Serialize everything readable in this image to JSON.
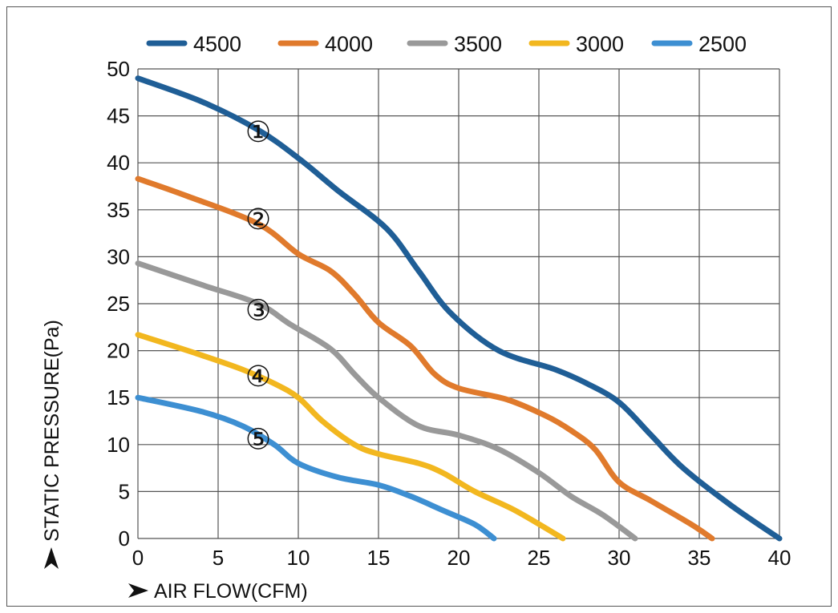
{
  "chart_data": {
    "type": "line",
    "xlabel": "AIR FLOW(CFM)",
    "ylabel": "STATIC PRESSURE(Pa)",
    "xlim": [
      0,
      40
    ],
    "ylim": [
      0,
      50
    ],
    "x_ticks": [
      "0",
      "5",
      "10",
      "15",
      "20",
      "25",
      "30",
      "35",
      "40"
    ],
    "y_ticks": [
      "0",
      "5",
      "10",
      "15",
      "20",
      "25",
      "30",
      "35",
      "40",
      "45",
      "50"
    ],
    "grid": true,
    "legend_position": "top",
    "series": [
      {
        "name": "4500",
        "color": "#1f5e96",
        "marker": "①",
        "points": [
          [
            0,
            49
          ],
          [
            4,
            46.5
          ],
          [
            7.5,
            43.5
          ],
          [
            10,
            40.5
          ],
          [
            12.5,
            37
          ],
          [
            15.5,
            33
          ],
          [
            17.5,
            28.5
          ],
          [
            19.5,
            24
          ],
          [
            22.5,
            20
          ],
          [
            26,
            18
          ],
          [
            28,
            16.5
          ],
          [
            30,
            14.5
          ],
          [
            32,
            11
          ],
          [
            34,
            7.5
          ],
          [
            37,
            3.5
          ],
          [
            40,
            0
          ]
        ]
      },
      {
        "name": "4000",
        "color": "#e07a2c",
        "marker": "②",
        "points": [
          [
            0,
            38.3
          ],
          [
            3,
            36.5
          ],
          [
            7.5,
            33.5
          ],
          [
            10,
            30.3
          ],
          [
            12,
            28.5
          ],
          [
            13.5,
            26
          ],
          [
            15,
            23
          ],
          [
            17,
            20.5
          ],
          [
            18.5,
            17.5
          ],
          [
            20,
            16
          ],
          [
            23,
            14.8
          ],
          [
            25.5,
            13
          ],
          [
            27,
            11.5
          ],
          [
            28.5,
            9.5
          ],
          [
            30,
            6
          ],
          [
            32,
            4
          ],
          [
            34.5,
            1.5
          ],
          [
            35.8,
            0
          ]
        ]
      },
      {
        "name": "3500",
        "color": "#999999",
        "marker": "③",
        "points": [
          [
            0,
            29.3
          ],
          [
            4,
            27
          ],
          [
            7.5,
            25
          ],
          [
            9.5,
            22.8
          ],
          [
            12,
            20.2
          ],
          [
            13.5,
            17.5
          ],
          [
            15,
            15
          ],
          [
            17.5,
            12
          ],
          [
            20,
            11
          ],
          [
            22.5,
            9.5
          ],
          [
            25,
            7
          ],
          [
            27,
            4.5
          ],
          [
            29,
            2.5
          ],
          [
            31,
            0
          ]
        ]
      },
      {
        "name": "3000",
        "color": "#f2b71f",
        "marker": "④",
        "points": [
          [
            0,
            21.7
          ],
          [
            4,
            19.5
          ],
          [
            6.5,
            18
          ],
          [
            8.5,
            16.5
          ],
          [
            10,
            15
          ],
          [
            11.5,
            12.5
          ],
          [
            13.5,
            10
          ],
          [
            15,
            9
          ],
          [
            17.5,
            8
          ],
          [
            19,
            7
          ],
          [
            21,
            5
          ],
          [
            23.5,
            3
          ],
          [
            26.5,
            0
          ]
        ]
      },
      {
        "name": "2500",
        "color": "#3d8fd2",
        "marker": "⑤",
        "points": [
          [
            0,
            15
          ],
          [
            4,
            13.5
          ],
          [
            6.5,
            12
          ],
          [
            8.5,
            10
          ],
          [
            10,
            8
          ],
          [
            12.5,
            6.5
          ],
          [
            15,
            5.7
          ],
          [
            17,
            4.5
          ],
          [
            19,
            3
          ],
          [
            21,
            1.5
          ],
          [
            22.2,
            0
          ]
        ]
      }
    ],
    "annotations": [
      {
        "text": "①",
        "x": 7.5,
        "y": 43
      },
      {
        "text": "②",
        "x": 7.5,
        "y": 33.7
      },
      {
        "text": "③",
        "x": 7.5,
        "y": 24
      },
      {
        "text": "④",
        "x": 7.5,
        "y": 17
      },
      {
        "text": "⑤",
        "x": 7.5,
        "y": 10.3
      }
    ]
  }
}
